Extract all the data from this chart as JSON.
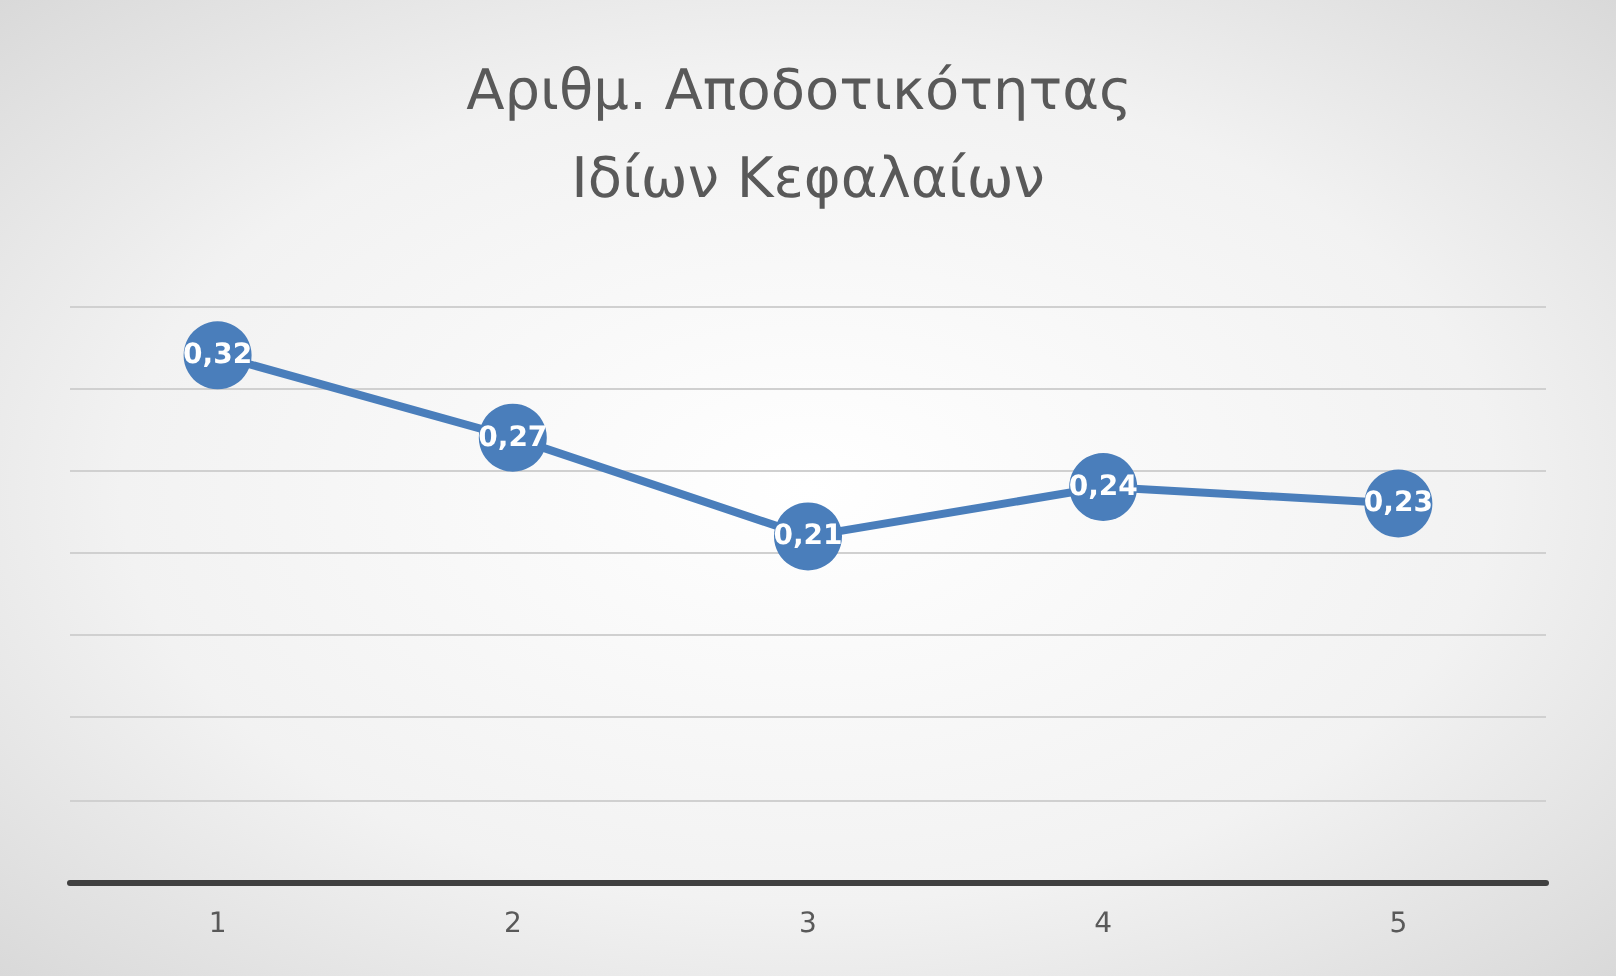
{
  "chart_data": {
    "type": "line",
    "title": "Αριθμ. Αποδοτικότητας Ιδίων Κεφαλαίων",
    "categories": [
      "1",
      "2",
      "3",
      "4",
      "5"
    ],
    "series": [
      {
        "color": "#4a7ebb",
        "values": [
          0.32,
          0.27,
          0.21,
          0.24,
          0.23
        ],
        "value_labels": [
          "0,32",
          "0,27",
          "0,21",
          "0,24",
          "0,23"
        ]
      }
    ],
    "ylim": [
      0,
      0.35
    ],
    "yticks": [
      {
        "value": 0,
        "label": null
      },
      {
        "value": 0.05,
        "label": null
      },
      {
        "value": 0.1,
        "label": null
      },
      {
        "value": 0.15,
        "label": null
      },
      {
        "value": 0.2,
        "label": null
      },
      {
        "value": 0.25,
        "label": null
      },
      {
        "value": 0.3,
        "label": null
      },
      {
        "value": 0.35,
        "label": null
      }
    ],
    "tick_labels": "x",
    "grid": "y",
    "marker": "circle",
    "line_style": "solid"
  }
}
